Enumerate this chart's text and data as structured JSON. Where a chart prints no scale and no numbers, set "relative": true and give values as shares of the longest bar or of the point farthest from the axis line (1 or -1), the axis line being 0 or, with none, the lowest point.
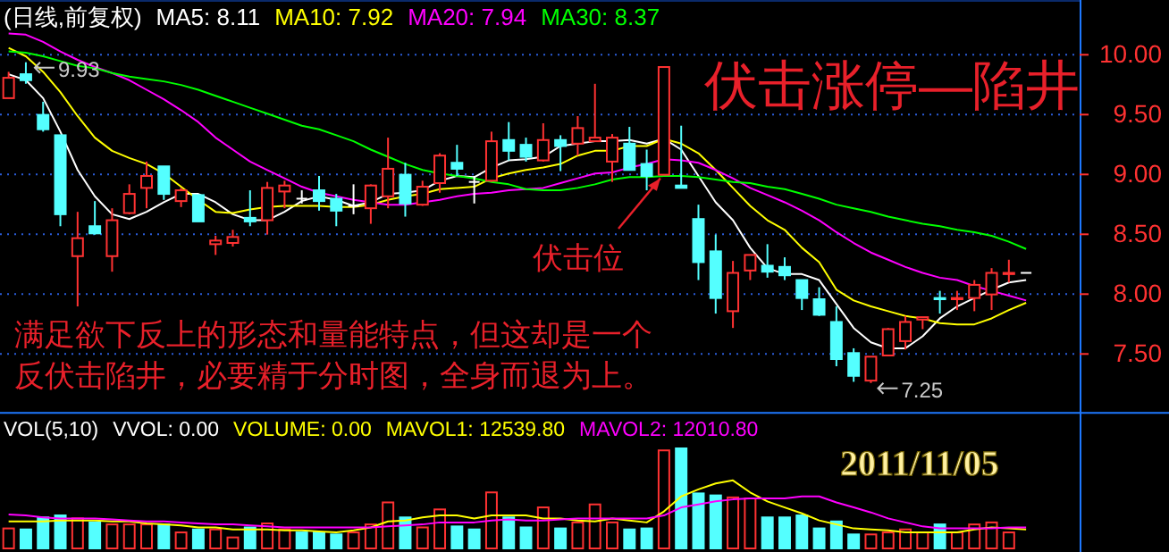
{
  "chart_data": [
    {
      "type": "candlestick",
      "title": "(日线,前复权)",
      "legend": "top left",
      "grid": "y",
      "tick_labels": "y",
      "categories": [
        null,
        null,
        null,
        null,
        null,
        null,
        null,
        null,
        null,
        null,
        null,
        null,
        null,
        null,
        null,
        null,
        null,
        null,
        null,
        null,
        null,
        null,
        null,
        null,
        null,
        null,
        null,
        null,
        null,
        null,
        null,
        null,
        null,
        null,
        null,
        null,
        null,
        null,
        null,
        null,
        null,
        null,
        null,
        null,
        null,
        null,
        null,
        null,
        null,
        null,
        null,
        null,
        null,
        null,
        null,
        null,
        null,
        null,
        null,
        null
      ],
      "ylim": [
        7.0,
        10.45
      ],
      "yticks": [
        {
          "value": 7.5,
          "label": "7.50"
        },
        {
          "value": 8,
          "label": "8.00"
        },
        {
          "value": 8.5,
          "label": "8.50"
        },
        {
          "value": 9,
          "label": "9.00"
        },
        {
          "value": 9.5,
          "label": "9.50"
        },
        {
          "value": 10,
          "label": "10.00"
        }
      ],
      "ohlc": [
        [
          9.63,
          9.85,
          9.63,
          9.8
        ],
        [
          9.83,
          9.93,
          9.75,
          9.78
        ],
        [
          9.49,
          9.6,
          9.35,
          9.37
        ],
        [
          9.32,
          9.32,
          8.56,
          8.66
        ],
        [
          8.31,
          8.68,
          7.89,
          8.46
        ],
        [
          8.56,
          8.77,
          8.49,
          8.5
        ],
        [
          8.31,
          8.71,
          8.18,
          8.61
        ],
        [
          8.67,
          8.91,
          8.66,
          8.83
        ],
        [
          8.88,
          9.1,
          8.71,
          8.98
        ],
        [
          9.06,
          9.06,
          8.78,
          8.83
        ],
        [
          8.77,
          8.88,
          8.72,
          8.86
        ],
        [
          8.82,
          8.82,
          8.6,
          8.6
        ],
        [
          8.41,
          8.48,
          8.32,
          8.44
        ],
        [
          8.42,
          8.53,
          8.39,
          8.47
        ],
        [
          8.63,
          8.86,
          8.56,
          8.6
        ],
        [
          8.61,
          8.93,
          8.49,
          8.88
        ],
        [
          8.85,
          8.94,
          8.71,
          8.9
        ],
        [
          8.79,
          8.86,
          8.75,
          8.79
        ],
        [
          8.86,
          8.98,
          8.69,
          8.77
        ],
        [
          8.79,
          8.83,
          8.56,
          8.69
        ],
        [
          8.73,
          8.91,
          8.66,
          8.73
        ],
        [
          8.71,
          8.91,
          8.58,
          8.9
        ],
        [
          8.81,
          9.3,
          8.71,
          9.04
        ],
        [
          8.99,
          9.09,
          8.64,
          8.75
        ],
        [
          8.74,
          8.94,
          8.73,
          8.89
        ],
        [
          8.92,
          9.17,
          8.84,
          9.15
        ],
        [
          9.09,
          9.24,
          8.98,
          9.04
        ],
        [
          8.93,
          8.98,
          8.75,
          8.93
        ],
        [
          8.94,
          9.35,
          8.93,
          9.27
        ],
        [
          9.28,
          9.43,
          9.11,
          9.19
        ],
        [
          9.24,
          9.3,
          9.1,
          9.14
        ],
        [
          9.11,
          9.42,
          9.1,
          9.28
        ],
        [
          9.28,
          9.32,
          9.02,
          9.23
        ],
        [
          9.25,
          9.48,
          9.15,
          9.38
        ],
        [
          9.27,
          9.75,
          9.27,
          9.3
        ],
        [
          9.1,
          9.33,
          8.93,
          9.3
        ],
        [
          9.25,
          9.39,
          9.03,
          9.03
        ],
        [
          9.08,
          9.2,
          8.86,
          8.98
        ],
        [
          8.99,
          9.89,
          8.99,
          9.89
        ],
        [
          8.9,
          9.4,
          8.88,
          8.88
        ],
        [
          8.62,
          8.74,
          8.11,
          8.26
        ],
        [
          8.35,
          8.49,
          7.83,
          7.96
        ],
        [
          7.85,
          8.27,
          7.71,
          8.17
        ],
        [
          8.19,
          8.32,
          8.11,
          8.32
        ],
        [
          8.23,
          8.41,
          8.13,
          8.18
        ],
        [
          8.22,
          8.3,
          8.11,
          8.15
        ],
        [
          8.11,
          8.11,
          7.86,
          7.96
        ],
        [
          7.95,
          8.05,
          7.81,
          7.82
        ],
        [
          7.76,
          7.89,
          7.39,
          7.45
        ],
        [
          7.5,
          7.54,
          7.26,
          7.31
        ],
        [
          7.27,
          7.47,
          7.25,
          7.47
        ],
        [
          7.48,
          7.71,
          7.48,
          7.7
        ],
        [
          7.6,
          7.81,
          7.53,
          7.76
        ],
        [
          7.78,
          7.8,
          7.7,
          7.8
        ],
        [
          7.96,
          8.02,
          7.83,
          7.95
        ],
        [
          7.95,
          8.02,
          7.86,
          7.96
        ],
        [
          7.96,
          8.11,
          7.85,
          8.07
        ],
        [
          7.99,
          8.21,
          7.86,
          8.17
        ],
        [
          8.16,
          8.28,
          8.09,
          8.17
        ],
        [
          8.17,
          8.17,
          8.17,
          8.17
        ]
      ],
      "colors": [
        "#ff3232",
        "#54ffff",
        "#54ffff",
        "#54ffff",
        "#ff3232",
        "#54ffff",
        "#ff3232",
        "#ff3232",
        "#ff3232",
        "#54ffff",
        "#ff3232",
        "#54ffff",
        "#ff3232",
        "#ff3232",
        "#54ffff",
        "#ff3232",
        "#ff3232",
        "#ffffff",
        "#54ffff",
        "#54ffff",
        "#ffffff",
        "#ff3232",
        "#ff3232",
        "#54ffff",
        "#ff3232",
        "#ff3232",
        "#54ffff",
        "#ffffff",
        "#ff3232",
        "#54ffff",
        "#54ffff",
        "#ff3232",
        "#54ffff",
        "#ff3232",
        "#ff3232",
        "#ff3232",
        "#54ffff",
        "#54ffff",
        "#ff3232",
        "#54ffff",
        "#54ffff",
        "#54ffff",
        "#ff3232",
        "#ff3232",
        "#54ffff",
        "#54ffff",
        "#54ffff",
        "#54ffff",
        "#54ffff",
        "#54ffff",
        "#ff3232",
        "#ff3232",
        "#ff3232",
        "#ff3232",
        "#54ffff",
        "#ff3232",
        "#ff3232",
        "#ff3232",
        "#ff3232",
        "#ffffff"
      ],
      "series": [
        {
          "type": "line",
          "name": "MA5: 8.11",
          "color": "#ffffff",
          "values": [
            9.83,
            9.78,
            9.63,
            9.35,
            9.03,
            8.81,
            8.66,
            8.62,
            8.68,
            8.76,
            8.83,
            8.83,
            8.76,
            8.66,
            8.61,
            8.61,
            8.68,
            8.77,
            8.81,
            8.78,
            8.73,
            8.76,
            8.83,
            8.84,
            8.86,
            8.94,
            8.98,
            8.97,
            9.05,
            9.11,
            9.12,
            9.14,
            9.23,
            9.25,
            9.27,
            9.27,
            9.28,
            9.25,
            9.29,
            9.2,
            8.98,
            8.76,
            8.61,
            8.38,
            8.21,
            8.16,
            8.16,
            8.11,
            7.91,
            7.71,
            7.59,
            7.54,
            7.54,
            7.64,
            7.79,
            7.89,
            7.96,
            8.03,
            8.09,
            8.11
          ]
        },
        {
          "type": "line",
          "name": "MA10: 7.92",
          "color": "#ffff00",
          "values": [
            10.05,
            9.98,
            9.85,
            9.68,
            9.48,
            9.3,
            9.19,
            9.13,
            9.08,
            9.0,
            8.89,
            8.78,
            8.68,
            8.67,
            8.7,
            8.72,
            8.73,
            8.73,
            8.73,
            8.72,
            8.72,
            8.74,
            8.78,
            8.81,
            8.83,
            8.87,
            8.88,
            8.89,
            8.96,
            9.0,
            9.03,
            9.05,
            9.08,
            9.15,
            9.19,
            9.19,
            9.23,
            9.23,
            9.29,
            9.25,
            9.17,
            9.03,
            8.88,
            8.73,
            8.61,
            8.53,
            8.38,
            8.26,
            8.03,
            7.94,
            7.89,
            7.85,
            7.81,
            7.79,
            7.75,
            7.74,
            7.74,
            7.79,
            7.86,
            7.92
          ]
        },
        {
          "type": "line",
          "name": "MA20: 7.94",
          "color": "#ff00ff",
          "values": [
            10.17,
            10.16,
            10.1,
            10.02,
            9.95,
            9.89,
            9.84,
            9.78,
            9.7,
            9.62,
            9.53,
            9.43,
            9.3,
            9.2,
            9.1,
            9.03,
            8.96,
            8.89,
            8.84,
            8.81,
            8.78,
            8.76,
            8.74,
            8.74,
            8.76,
            8.78,
            8.81,
            8.83,
            8.84,
            8.86,
            8.87,
            8.88,
            8.92,
            8.96,
            9.0,
            9.01,
            9.05,
            9.08,
            9.12,
            9.11,
            9.09,
            9.03,
            8.96,
            8.88,
            8.82,
            8.76,
            8.69,
            8.61,
            8.51,
            8.42,
            8.34,
            8.28,
            8.22,
            8.17,
            8.13,
            8.11,
            8.06,
            8.02,
            7.98,
            7.94
          ]
        },
        {
          "type": "line",
          "name": "MA30: 8.37",
          "color": "#00ff00",
          "values": [
            10.02,
            10.01,
            9.98,
            9.94,
            9.9,
            9.88,
            9.84,
            9.81,
            9.79,
            9.77,
            9.74,
            9.7,
            9.65,
            9.6,
            9.55,
            9.5,
            9.45,
            9.4,
            9.37,
            9.32,
            9.27,
            9.2,
            9.14,
            9.08,
            9.03,
            9.0,
            8.98,
            8.96,
            8.93,
            8.91,
            8.87,
            8.86,
            8.86,
            8.88,
            8.91,
            8.95,
            8.97,
            8.97,
            8.98,
            8.98,
            8.97,
            8.95,
            8.93,
            8.92,
            8.89,
            8.87,
            8.83,
            8.79,
            8.74,
            8.71,
            8.68,
            8.64,
            8.61,
            8.58,
            8.56,
            8.53,
            8.51,
            8.48,
            8.43,
            8.37
          ]
        }
      ],
      "annotations": [
        {
          "text": "9.93",
          "y": 9.93
        },
        "7.25",
        "伏击涨停—陷井",
        "伏击位",
        "满足欲下反上的形态和量能特点，但这却是一个反伏击陷井，必要精于分时图，全身而退为上。"
      ]
    },
    {
      "type": "bar",
      "title": "VOL(5,10)",
      "legend": "top",
      "relative": true,
      "categories": [
        null,
        null,
        null,
        null,
        null,
        null,
        null,
        null,
        null,
        null,
        null,
        null,
        null,
        null,
        null,
        null,
        null,
        null,
        null,
        null,
        null,
        null,
        null,
        null,
        null,
        null,
        null,
        null,
        null,
        null,
        null,
        null,
        null,
        null,
        null,
        null,
        null,
        null,
        null,
        null,
        null,
        null,
        null,
        null,
        null,
        null,
        null,
        null,
        null,
        null,
        null,
        null,
        null,
        null,
        null,
        null,
        null,
        null,
        null,
        null
      ],
      "values": [
        0.2,
        0.19,
        0.31,
        0.33,
        0.3,
        0.26,
        0.24,
        0.24,
        0.24,
        0.24,
        0.16,
        0.19,
        0.19,
        0.11,
        0.21,
        0.25,
        0.19,
        0.16,
        0.16,
        0.14,
        0.16,
        0.24,
        0.46,
        0.31,
        0.21,
        0.39,
        0.22,
        0.19,
        0.56,
        0.31,
        0.21,
        0.41,
        0.2,
        0.26,
        0.44,
        0.26,
        0.19,
        0.2,
        0.98,
        1,
        0.55,
        0.53,
        0.51,
        0.5,
        0.31,
        0.31,
        0.33,
        0.2,
        0.27,
        0.14,
        0.14,
        0.16,
        0.19,
        0.16,
        0.24,
        0.16,
        0.24,
        0.26,
        0.16,
        0
      ],
      "colors": [
        "#ff3232",
        "#54ffff",
        "#54ffff",
        "#54ffff",
        "#ff3232",
        "#54ffff",
        "#ff3232",
        "#ff3232",
        "#ff3232",
        "#54ffff",
        "#ff3232",
        "#54ffff",
        "#ff3232",
        "#ff3232",
        "#54ffff",
        "#ff3232",
        "#ff3232",
        "#54ffff",
        "#54ffff",
        "#54ffff",
        "#ff3232",
        "#ff3232",
        "#ff3232",
        "#54ffff",
        "#ff3232",
        "#ff3232",
        "#54ffff",
        "#54ffff",
        "#ff3232",
        "#54ffff",
        "#54ffff",
        "#ff3232",
        "#54ffff",
        "#ff3232",
        "#ff3232",
        "#ff3232",
        "#54ffff",
        "#54ffff",
        "#ff3232",
        "#54ffff",
        "#54ffff",
        "#54ffff",
        "#ff3232",
        "#ff3232",
        "#54ffff",
        "#54ffff",
        "#54ffff",
        "#54ffff",
        "#54ffff",
        "#54ffff",
        "#ff3232",
        "#ff3232",
        "#ff3232",
        "#ff3232",
        "#54ffff",
        "#ff3232",
        "#ff3232",
        "#ff3232",
        "#ff3232",
        "#ff3232"
      ],
      "series": [
        {
          "type": "line",
          "name": "MAVOL1: 12539.80",
          "color": "#ffff00",
          "values": [
            0.27,
            0.27,
            0.27,
            0.28,
            0.28,
            0.28,
            0.27,
            0.27,
            0.25,
            0.24,
            0.23,
            0.21,
            0.21,
            0.19,
            0.19,
            0.19,
            0.18,
            0.18,
            0.17,
            0.16,
            0.18,
            0.21,
            0.27,
            0.28,
            0.31,
            0.33,
            0.33,
            0.3,
            0.33,
            0.33,
            0.33,
            0.3,
            0.3,
            0.28,
            0.27,
            0.3,
            0.28,
            0.26,
            0.37,
            0.52,
            0.59,
            0.65,
            0.68,
            0.56,
            0.47,
            0.41,
            0.35,
            0.28,
            0.24,
            0.2,
            0.19,
            0.18,
            0.16,
            0.16,
            0.16,
            0.16,
            0.19,
            0.21,
            0.2,
            0.19
          ]
        },
        {
          "type": "line",
          "name": "MAVOL2: 12010.80",
          "color": "#ff00ff",
          "values": [
            0.34,
            0.33,
            0.31,
            0.3,
            0.3,
            0.3,
            0.29,
            0.28,
            0.27,
            0.27,
            0.26,
            0.25,
            0.24,
            0.24,
            0.23,
            0.22,
            0.21,
            0.21,
            0.21,
            0.21,
            0.21,
            0.21,
            0.22,
            0.23,
            0.24,
            0.26,
            0.26,
            0.26,
            0.28,
            0.29,
            0.28,
            0.28,
            0.29,
            0.3,
            0.3,
            0.3,
            0.3,
            0.3,
            0.33,
            0.41,
            0.44,
            0.47,
            0.49,
            0.5,
            0.5,
            0.5,
            0.52,
            0.52,
            0.46,
            0.41,
            0.36,
            0.3,
            0.26,
            0.22,
            0.2,
            0.2,
            0.2,
            0.2,
            0.21,
            0.21
          ]
        }
      ],
      "annotations": [
        "VVOL: 0.00",
        "VOLUME: 0.00",
        "2011/11/05"
      ]
    }
  ]
}
